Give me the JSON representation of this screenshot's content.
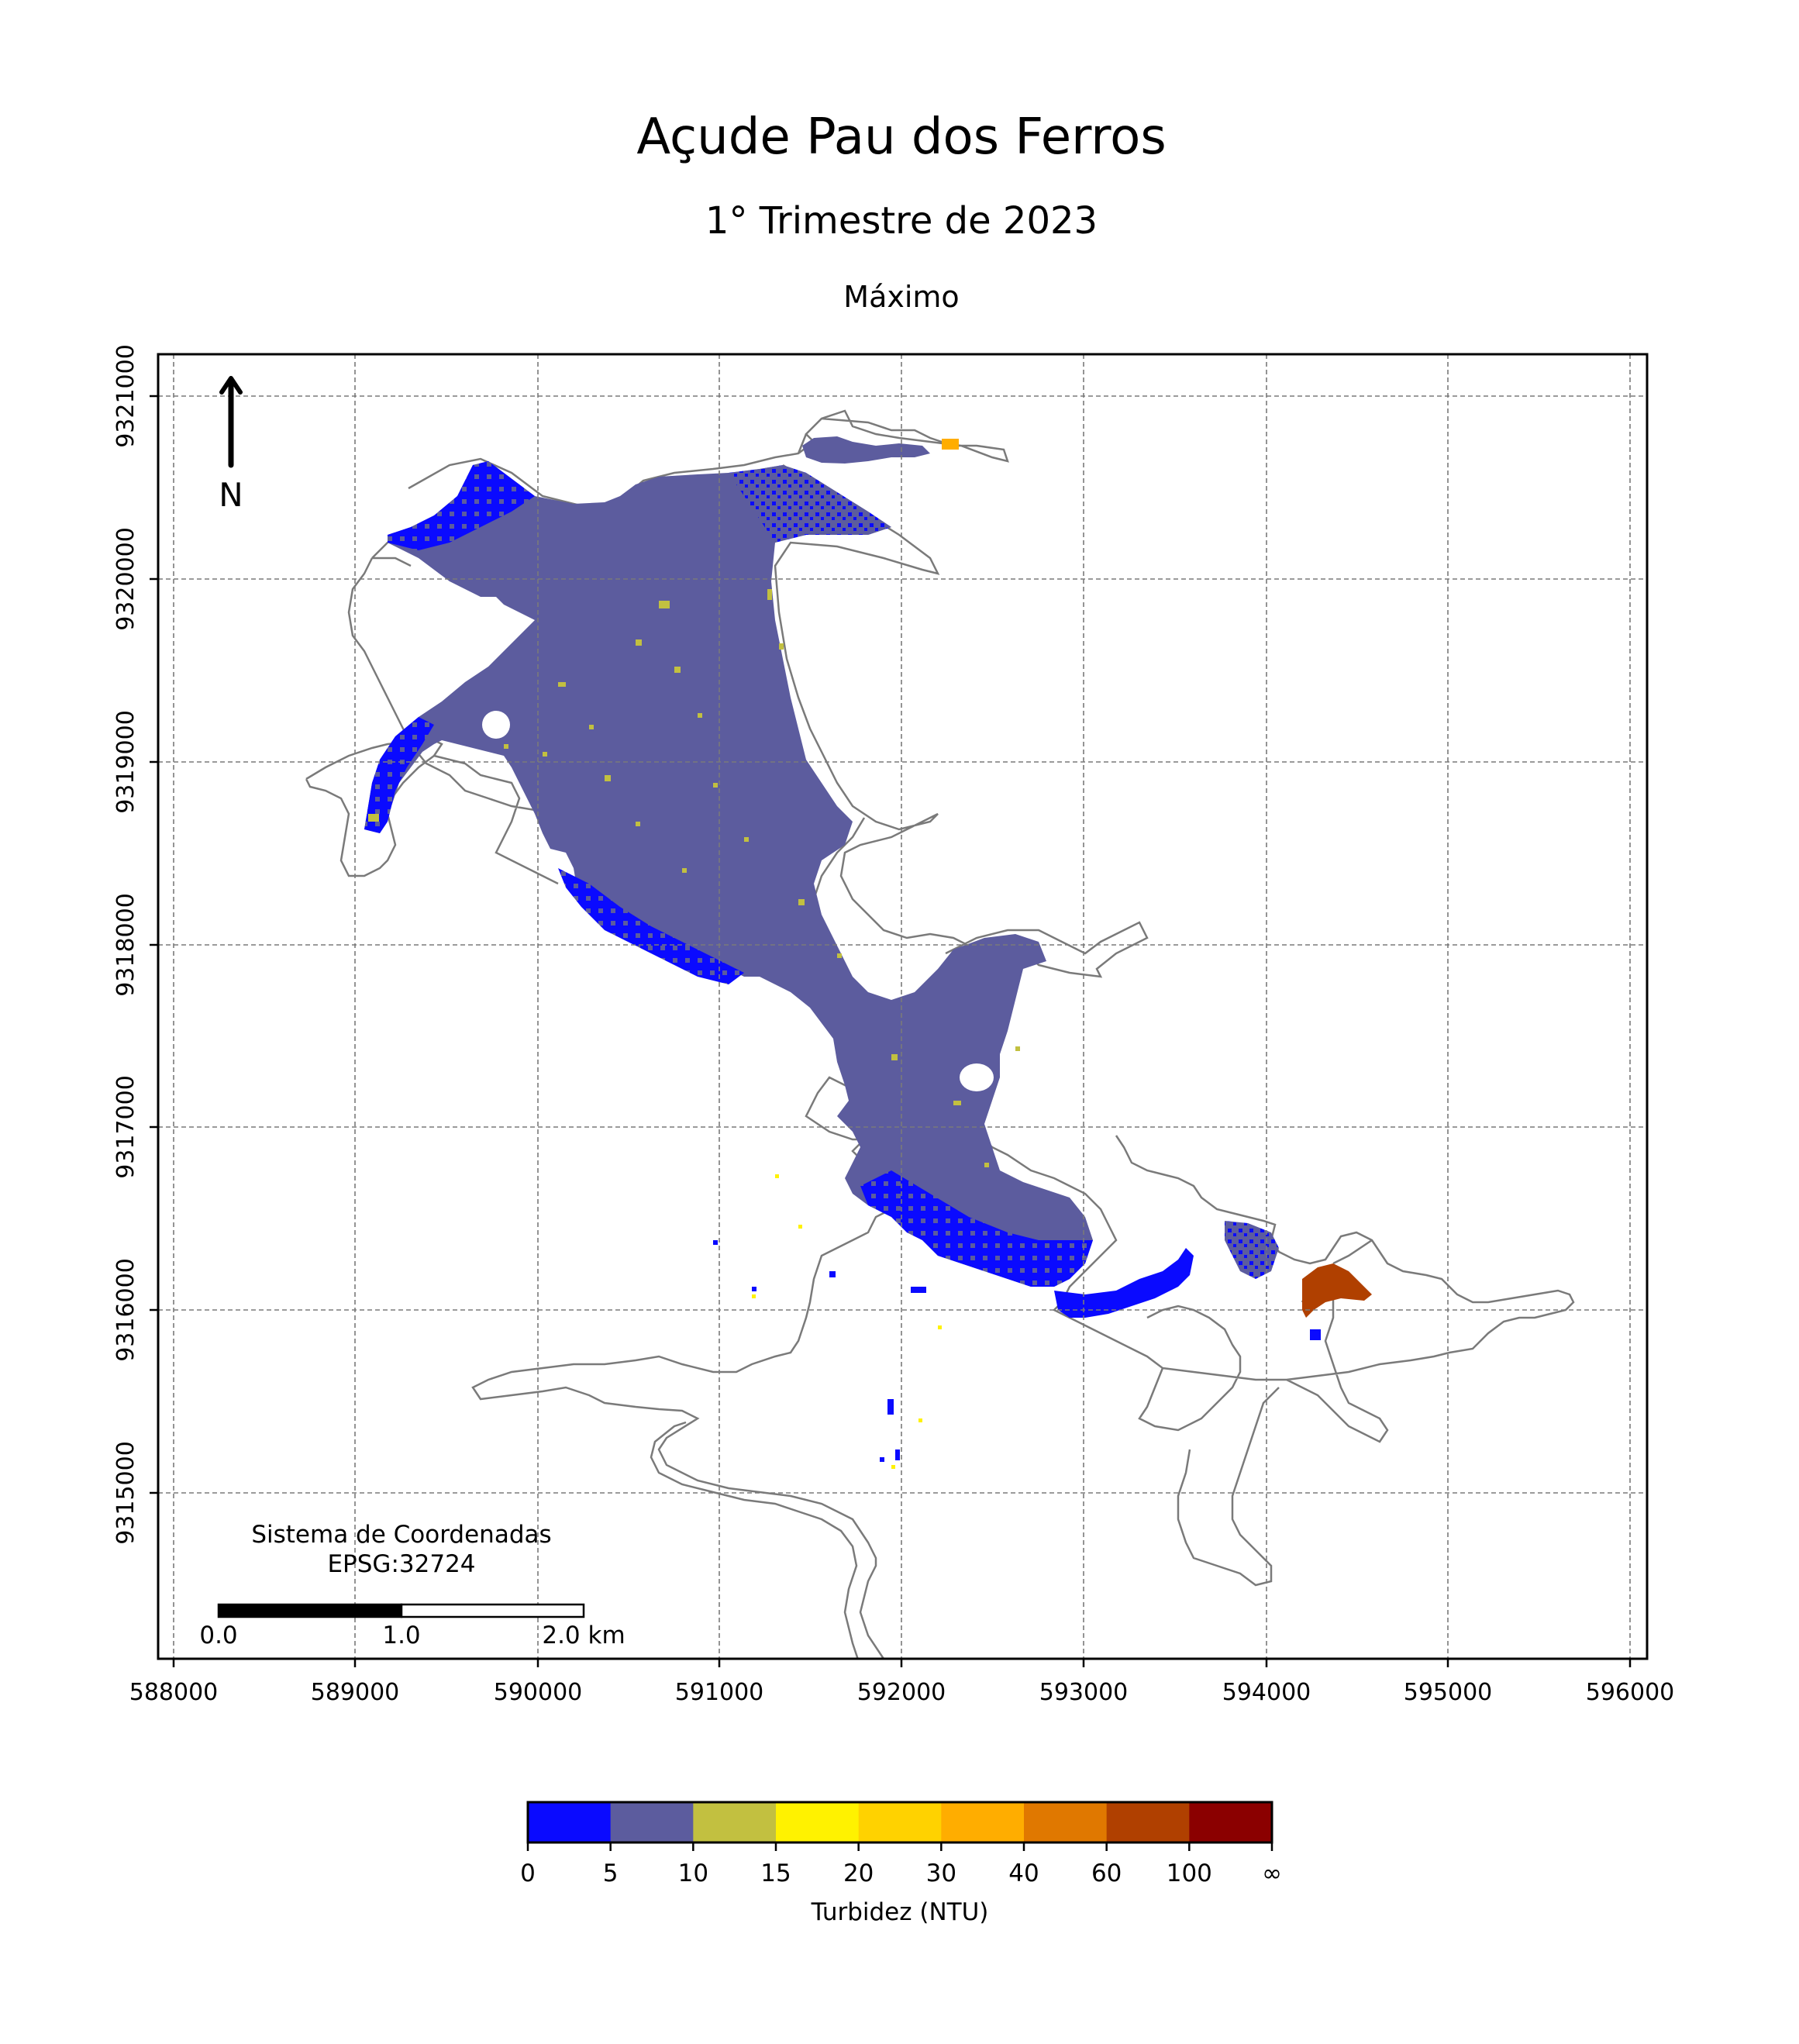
{
  "title": "Açude Pau dos Ferros",
  "subtitle": "1° Trimestre de 2023",
  "statistic": "Máximo",
  "north_arrow": {
    "label": "N"
  },
  "crs": {
    "line1": "Sistema de Coordenadas",
    "line2": "EPSG:32724"
  },
  "scale_bar": {
    "labels": [
      "0.0",
      "1.0",
      "2.0 km"
    ]
  },
  "axes": {
    "x_ticks": [
      "588000",
      "589000",
      "590000",
      "591000",
      "592000",
      "593000",
      "594000",
      "595000",
      "596000"
    ],
    "y_ticks": [
      "9321000",
      "9320000",
      "9319000",
      "9318000",
      "9317000",
      "9316000",
      "9315000"
    ],
    "x_range": [
      587930,
      596000
    ],
    "y_range": [
      9314030,
      9321250
    ],
    "grid": true
  },
  "legend": {
    "title": "Turbidez (NTU)",
    "ticks": [
      "0",
      "5",
      "10",
      "15",
      "20",
      "30",
      "40",
      "60",
      "100",
      "∞"
    ],
    "colors": [
      "#0a0aff",
      "#5c5c9e",
      "#c2c040",
      "#fff200",
      "#ffd200",
      "#ffad00",
      "#e07800",
      "#b04000",
      "#8b0000"
    ]
  },
  "chart_data": {
    "type": "map",
    "title": "Açude Pau dos Ferros",
    "subtitle": "1° Trimestre de 2023",
    "xlabel": "",
    "ylabel": "",
    "colorbar_label": "Turbidez (NTU)",
    "class_bounds": [
      "0",
      "5",
      "10",
      "15",
      "20",
      "30",
      "40",
      "60",
      "100",
      "∞"
    ],
    "dominant_class": "5–10",
    "high_turbidity_area": "60–100 near 594300 E, 9316100 N"
  }
}
